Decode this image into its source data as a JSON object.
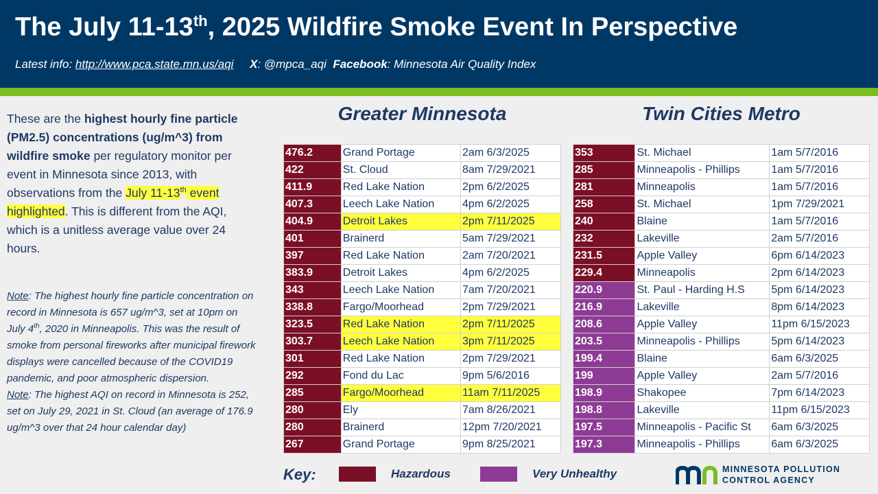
{
  "header": {
    "title": {
      "text": "The July 11-13",
      "sup": "th",
      "rest": ", 2025 Wildfire Smoke Event In Perspective"
    },
    "info": {
      "label": "Latest info:",
      "url": "http://www.pca.state.mn.us/aqi",
      "x_label": "X",
      "x_handle": ": @mpca_aqi",
      "facebook_label": "Facebook",
      "facebook_page": ": Minnesota Air Quality Index"
    }
  },
  "intro": [
    {
      "text": "These are the ",
      "style": "normal"
    },
    {
      "text": "highest hourly fine particle (PM2.5) concentrations (ug/m^3) from wildfire smoke",
      "style": "bold"
    },
    {
      "text": " per regulatory monitor per event in Minnesota since 2013, with observations from the ",
      "style": "normal"
    },
    {
      "text": "July 11-13",
      "style": "highlight"
    },
    {
      "text": "th",
      "style": "highlight-sup"
    },
    {
      "text": " event highlighted",
      "style": "highlight"
    },
    {
      "text": ". This is different from the AQI, which is a unitless average value over 24 hours.",
      "style": "normal"
    }
  ],
  "notes": [
    [
      {
        "text": "Note",
        "style": "underline"
      },
      {
        "text": ": The highest hourly fine particle concentration on record in Minnesota is 657 ug/m^3, set at 10pm on July 4",
        "style": "normal"
      },
      {
        "text": "th",
        "style": "sup"
      },
      {
        "text": ", 2020 in Minneapolis. This was the result of smoke from personal fireworks after municipal firework displays were cancelled because of the COVID19 pandemic, and poor atmospheric dispersion.",
        "style": "normal"
      }
    ],
    [
      {
        "text": "Note",
        "style": "underline"
      },
      {
        "text": ": The highest AQI on record in Minnesota is 252, set on July 29, 2021 in St. Cloud (an average of 176.9 ug/m^3 over that 24 hour calendar day)",
        "style": "normal"
      }
    ]
  ],
  "tables": [
    {
      "title": "Greater Minnesota",
      "rows": [
        {
          "value": 476.2,
          "site": "Grand Portage",
          "time": "2am 6/3/2025",
          "color": "#7b0f26",
          "highlight": false
        },
        {
          "value": 422,
          "site": "St. Cloud",
          "time": "8am 7/29/2021",
          "color": "#7b0f26",
          "highlight": false
        },
        {
          "value": 411.9,
          "site": "Red Lake Nation",
          "time": "2pm 6/2/2025",
          "color": "#7b0f26",
          "highlight": false
        },
        {
          "value": 407.3,
          "site": "Leech Lake Nation",
          "time": "4pm 6/2/2025",
          "color": "#7b0f26",
          "highlight": false
        },
        {
          "value": 404.9,
          "site": "Detroit Lakes",
          "time": "2pm 7/11/2025",
          "color": "#7b0f26",
          "highlight": true
        },
        {
          "value": 401,
          "site": "Brainerd",
          "time": "5am 7/29/2021",
          "color": "#7b0f26",
          "highlight": false
        },
        {
          "value": 397,
          "site": "Red Lake Nation",
          "time": "2am 7/20/2021",
          "color": "#7b0f26",
          "highlight": false
        },
        {
          "value": 383.9,
          "site": "Detroit Lakes",
          "time": "4pm 6/2/2025",
          "color": "#7b0f26",
          "highlight": false
        },
        {
          "value": 343,
          "site": "Leech Lake Nation",
          "time": "7am 7/20/2021",
          "color": "#7b0f26",
          "highlight": false
        },
        {
          "value": 338.8,
          "site": "Fargo/Moorhead",
          "time": "2pm 7/29/2021",
          "color": "#7b0f26",
          "highlight": false
        },
        {
          "value": 323.5,
          "site": "Red Lake Nation",
          "time": "2pm 7/11/2025",
          "color": "#7b0f26",
          "highlight": true
        },
        {
          "value": 303.7,
          "site": "Leech Lake Nation",
          "time": "3pm 7/11/2025",
          "color": "#7b0f26",
          "highlight": true
        },
        {
          "value": 301,
          "site": "Red Lake Nation",
          "time": "2pm 7/29/2021",
          "color": "#7b0f26",
          "highlight": false
        },
        {
          "value": 292,
          "site": "Fond du Lac",
          "time": "9pm 5/6/2016",
          "color": "#7b0f26",
          "highlight": false
        },
        {
          "value": 285,
          "site": "Fargo/Moorhead",
          "time": "11am 7/11/2025",
          "color": "#7b0f26",
          "highlight": true
        },
        {
          "value": 280,
          "site": "Ely",
          "time": "7am 8/26/2021",
          "color": "#7b0f26",
          "highlight": false
        },
        {
          "value": 280,
          "site": "Brainerd",
          "time": "12pm 7/20/2021",
          "color": "#7b0f26",
          "highlight": false
        },
        {
          "value": 267,
          "site": "Grand Portage",
          "time": "9pm 8/25/2021",
          "color": "#7b0f26",
          "highlight": false
        }
      ]
    },
    {
      "title": "Twin Cities Metro",
      "rows": [
        {
          "value": 353,
          "site": "St. Michael",
          "time": "1am 5/7/2016",
          "color": "#7b0f26",
          "highlight": false
        },
        {
          "value": 285,
          "site": "Minneapolis - Phillips",
          "time": "1am 5/7/2016",
          "color": "#7b0f26",
          "highlight": false
        },
        {
          "value": 281,
          "site": "Minneapolis",
          "time": "1am 5/7/2016",
          "color": "#7b0f26",
          "highlight": false
        },
        {
          "value": 258,
          "site": "St. Michael",
          "time": "1pm 7/29/2021",
          "color": "#7b0f26",
          "highlight": false
        },
        {
          "value": 240,
          "site": "Blaine",
          "time": "1am 5/7/2016",
          "color": "#7b0f26",
          "highlight": false
        },
        {
          "value": 232,
          "site": "Lakeville",
          "time": "2am 5/7/2016",
          "color": "#7b0f26",
          "highlight": false
        },
        {
          "value": 231.5,
          "site": "Apple Valley",
          "time": "6pm 6/14/2023",
          "color": "#7b0f26",
          "highlight": false
        },
        {
          "value": 229.4,
          "site": "Minneapolis",
          "time": "2pm 6/14/2023",
          "color": "#7b0f26",
          "highlight": false
        },
        {
          "value": 220.9,
          "site": "St. Paul - Harding H.S",
          "time": "5pm 6/14/2023",
          "color": "#8e3b95",
          "highlight": false
        },
        {
          "value": 216.9,
          "site": "Lakeville",
          "time": "8pm 6/14/2023",
          "color": "#8e3b95",
          "highlight": false
        },
        {
          "value": 208.6,
          "site": "Apple Valley",
          "time": "11pm 6/15/2023",
          "color": "#8e3b95",
          "highlight": false
        },
        {
          "value": 203.5,
          "site": "Minneapolis - Phillips",
          "time": "5pm 6/14/2023",
          "color": "#8e3b95",
          "highlight": false
        },
        {
          "value": 199.4,
          "site": "Blaine",
          "time": "6am 6/3/2025",
          "color": "#8e3b95",
          "highlight": false
        },
        {
          "value": 199,
          "site": "Apple Valley",
          "time": "2am 5/7/2016",
          "color": "#8e3b95",
          "highlight": false
        },
        {
          "value": 198.9,
          "site": "Shakopee",
          "time": "7pm 6/14/2023",
          "color": "#8e3b95",
          "highlight": false
        },
        {
          "value": 198.8,
          "site": "Lakeville",
          "time": "11pm 6/15/2023",
          "color": "#8e3b95",
          "highlight": false
        },
        {
          "value": 197.5,
          "site": "Minneapolis - Pacific St",
          "time": "6am 6/3/2025",
          "color": "#8e3b95",
          "highlight": false
        },
        {
          "value": 197.3,
          "site": "Minneapolis - Phillips",
          "time": "6am 6/3/2025",
          "color": "#8e3b95",
          "highlight": false
        }
      ]
    }
  ],
  "key": {
    "label": "Key:",
    "items": [
      {
        "label": "Hazardous",
        "color": "#7b0f26"
      },
      {
        "label": "Very Unhealthy",
        "color": "#8e3b95"
      }
    ]
  },
  "logo": {
    "line1": "MINNESOTA POLLUTION",
    "line2": "CONTROL AGENCY"
  }
}
